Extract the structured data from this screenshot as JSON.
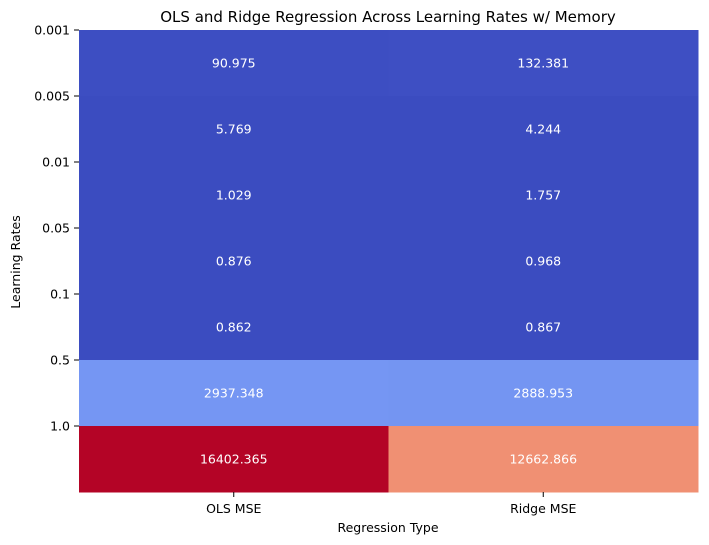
{
  "chart_data": {
    "type": "heatmap",
    "title": "OLS and Ridge Regression Across Learning Rates w/ Memory",
    "xlabel": "Regression Type",
    "ylabel": "Learning Rates",
    "x_categories": [
      "OLS MSE",
      "Ridge MSE"
    ],
    "y_categories": [
      "0.001",
      "0.005",
      "0.01",
      "0.05",
      "0.1",
      "0.5",
      "1.0"
    ],
    "values": [
      [
        90.975,
        132.381
      ],
      [
        5.769,
        4.244
      ],
      [
        1.029,
        1.757
      ],
      [
        0.876,
        0.968
      ],
      [
        0.862,
        0.867
      ],
      [
        2937.348,
        2888.953
      ],
      [
        16402.365,
        12662.866
      ]
    ],
    "value_labels": [
      [
        "90.975",
        "132.381"
      ],
      [
        "5.769",
        "4.244"
      ],
      [
        "1.029",
        "1.757"
      ],
      [
        "0.876",
        "0.968"
      ],
      [
        "0.862",
        "0.867"
      ],
      [
        "2937.348",
        "2888.953"
      ],
      [
        "16402.365",
        "12662.866"
      ]
    ],
    "colormap": "coolwarm",
    "value_range": [
      0.862,
      16402.365
    ],
    "grid": false,
    "legend": "none"
  }
}
